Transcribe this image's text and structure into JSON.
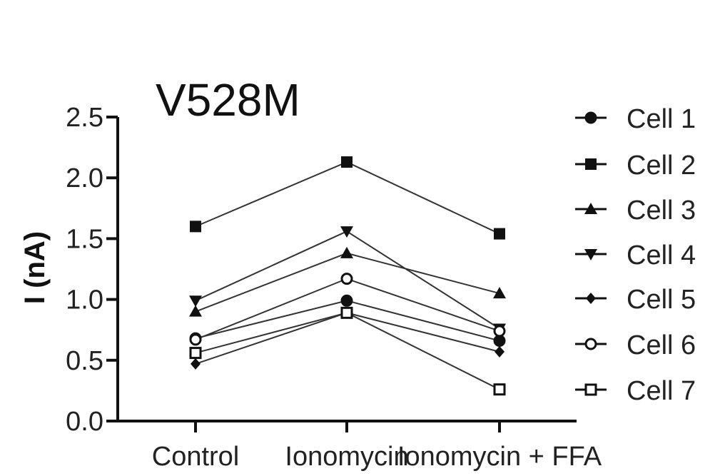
{
  "chart_data": {
    "type": "line",
    "title": "V528M",
    "ylabel": "I (nA)",
    "xlabel": "",
    "categories": [
      "Control",
      "Ionomycin",
      "Ionomycin + FFA"
    ],
    "ylim": [
      0,
      2.5
    ],
    "yticks": [
      "0.0",
      "0.5",
      "1.0",
      "1.5",
      "2.0",
      "2.5"
    ],
    "legend_position": "right",
    "grid": false,
    "series": [
      {
        "name": "Cell 1",
        "marker": "circle-filled",
        "values": [
          0.68,
          0.99,
          0.66
        ]
      },
      {
        "name": "Cell 2",
        "marker": "square-filled",
        "values": [
          1.6,
          2.13,
          1.54
        ]
      },
      {
        "name": "Cell 3",
        "marker": "triangle-up",
        "values": [
          0.9,
          1.38,
          1.05
        ]
      },
      {
        "name": "Cell 4",
        "marker": "triangle-down",
        "values": [
          0.99,
          1.56,
          0.76
        ]
      },
      {
        "name": "Cell 5",
        "marker": "diamond-filled",
        "values": [
          0.47,
          0.89,
          0.57
        ]
      },
      {
        "name": "Cell 6",
        "marker": "circle-open",
        "values": [
          0.67,
          1.17,
          0.74
        ]
      },
      {
        "name": "Cell 7",
        "marker": "square-open",
        "values": [
          0.56,
          0.89,
          0.26
        ]
      }
    ]
  }
}
